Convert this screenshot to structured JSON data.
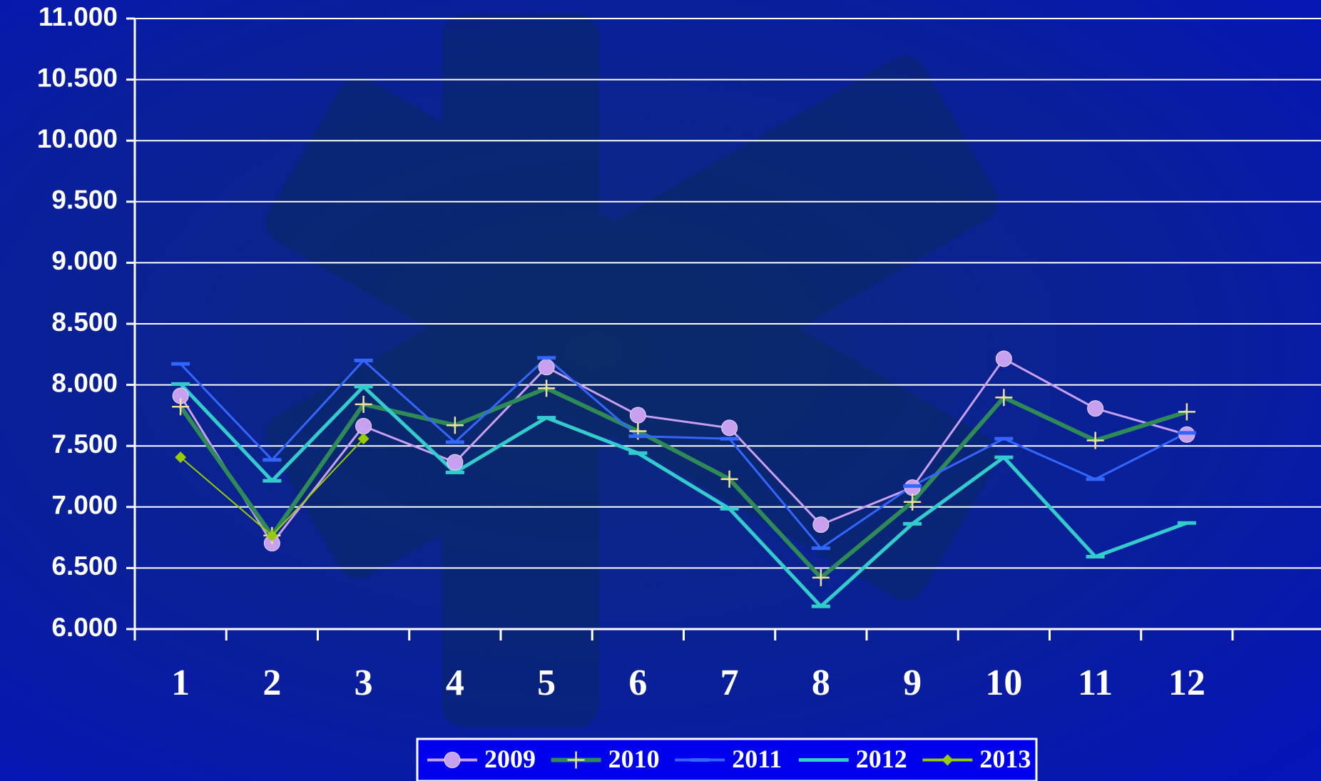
{
  "chart_data": {
    "type": "line",
    "categories": [
      "1",
      "2",
      "3",
      "4",
      "5",
      "6",
      "7",
      "8",
      "9",
      "10",
      "11",
      "12"
    ],
    "series": [
      {
        "name": "2009",
        "color": "#c8a0f0",
        "marker": "circle",
        "values": [
          7910,
          6703,
          7662,
          7366,
          8145,
          7752,
          7648,
          6855,
          7159,
          8214,
          7807,
          7593
        ]
      },
      {
        "name": "2010",
        "color": "#2e8b57",
        "marker": "plus",
        "values": [
          7821,
          6766,
          7841,
          7669,
          7972,
          7621,
          7228,
          6421,
          7041,
          7897,
          7545,
          7779
        ]
      },
      {
        "name": "2011",
        "color": "#3366ff",
        "marker": "dash",
        "values": [
          8172,
          7386,
          8200,
          7531,
          8221,
          7579,
          7559,
          6662,
          7172,
          7559,
          7228,
          7607
        ]
      },
      {
        "name": "2012",
        "color": "#33cccc",
        "marker": "dash",
        "values": [
          8007,
          7214,
          7986,
          7283,
          7731,
          7441,
          6986,
          6186,
          6862,
          7407,
          6593,
          6869
        ]
      },
      {
        "name": "2013",
        "color": "#99cc00",
        "marker": "diamond",
        "values": [
          7407,
          6766,
          7559,
          null,
          null,
          null,
          null,
          null,
          null,
          null,
          null,
          null
        ]
      }
    ],
    "ylim": [
      6000,
      11000
    ],
    "yticks": [
      {
        "value": 6000,
        "label": "6.000"
      },
      {
        "value": 6500,
        "label": "6.500"
      },
      {
        "value": 7000,
        "label": "7.000"
      },
      {
        "value": 7500,
        "label": "7.500"
      },
      {
        "value": 8000,
        "label": "8.000"
      },
      {
        "value": 8500,
        "label": "8.500"
      },
      {
        "value": 9000,
        "label": "9.000"
      },
      {
        "value": 9500,
        "label": "9.500"
      },
      {
        "value": 10000,
        "label": "10.000"
      },
      {
        "value": 10500,
        "label": "10.500"
      },
      {
        "value": 11000,
        "label": "11.000"
      }
    ],
    "grid": true,
    "legend": "bottom"
  }
}
